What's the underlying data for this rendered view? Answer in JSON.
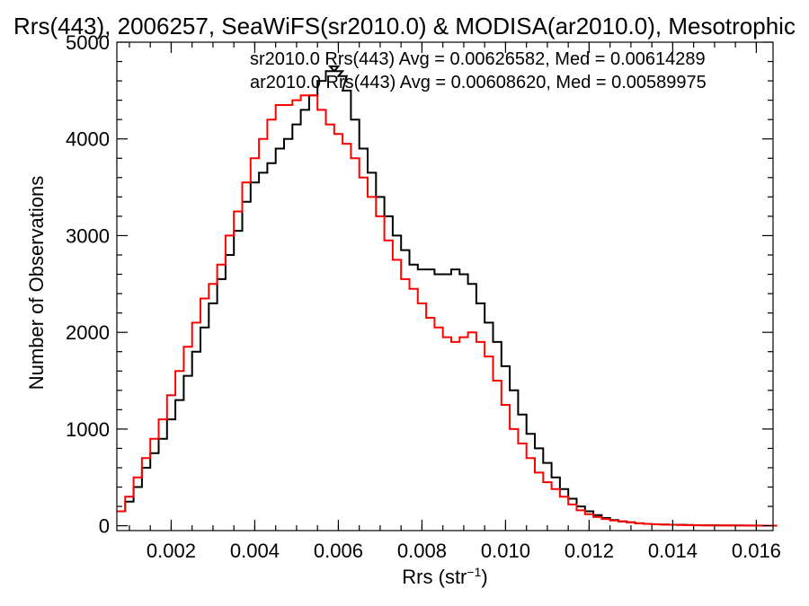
{
  "chart_data": {
    "type": "line",
    "title": "Rrs(443), 2006257, SeaWiFS(sr2010.0) & MODISA(ar2010.0), Mesotrophic",
    "xlabel": "Rrs (str",
    "xlabel_sup": "−1",
    "xlabel_close": ")",
    "ylabel": "Number of Observations",
    "xlim": [
      0.0007,
      0.0164
    ],
    "ylim": [
      -50,
      5000
    ],
    "xticks": [
      0.002,
      0.004,
      0.006,
      0.008,
      0.01,
      0.012,
      0.014,
      0.016
    ],
    "xtick_labels": [
      "0.002",
      "0.004",
      "0.006",
      "0.008",
      "0.010",
      "0.012",
      "0.014",
      "0.016"
    ],
    "yticks": [
      0,
      1000,
      2000,
      3000,
      4000,
      5000
    ],
    "ytick_labels": [
      "0",
      "1000",
      "2000",
      "3000",
      "4000",
      "5000"
    ],
    "step": true,
    "grid": false,
    "series": [
      {
        "name": "sr2010.0 Rrs(443) Avg = 0.00626582, Med = 0.00614289",
        "color": "#000000",
        "x": [
          0.0008,
          0.001,
          0.0012,
          0.0014,
          0.0016,
          0.0018,
          0.002,
          0.0022,
          0.0024,
          0.0026,
          0.0028,
          0.003,
          0.0032,
          0.0034,
          0.0036,
          0.0038,
          0.004,
          0.0042,
          0.0044,
          0.0046,
          0.0048,
          0.005,
          0.0052,
          0.0054,
          0.0056,
          0.0058,
          0.0059,
          0.006,
          0.0061,
          0.0062,
          0.0064,
          0.0066,
          0.0068,
          0.007,
          0.0072,
          0.0074,
          0.0076,
          0.0078,
          0.008,
          0.0082,
          0.0084,
          0.0086,
          0.0088,
          0.009,
          0.0092,
          0.0094,
          0.0096,
          0.0098,
          0.01,
          0.0102,
          0.0104,
          0.0106,
          0.0108,
          0.011,
          0.0112,
          0.0114,
          0.0116,
          0.0118,
          0.012,
          0.0122,
          0.0124,
          0.0126,
          0.0128,
          0.013,
          0.0132,
          0.0134,
          0.0136,
          0.0138,
          0.014,
          0.0142,
          0.0144,
          0.0146,
          0.0148,
          0.015,
          0.0152,
          0.0154,
          0.0156,
          0.0158,
          0.016,
          0.0162,
          0.0164
        ],
        "y": [
          150,
          250,
          400,
          600,
          750,
          900,
          1100,
          1300,
          1550,
          1800,
          2050,
          2300,
          2550,
          2800,
          3050,
          3350,
          3550,
          3650,
          3750,
          3900,
          4000,
          4150,
          4300,
          4450,
          4600,
          4700,
          4750,
          4700,
          4650,
          4500,
          4200,
          3900,
          3650,
          3400,
          3200,
          3000,
          2850,
          2700,
          2650,
          2650,
          2600,
          2600,
          2650,
          2600,
          2500,
          2300,
          2100,
          1900,
          1650,
          1400,
          1150,
          950,
          800,
          650,
          500,
          380,
          280,
          200,
          150,
          110,
          80,
          60,
          45,
          35,
          25,
          20,
          15,
          12,
          10,
          10,
          8,
          6,
          5,
          5,
          4,
          3,
          3,
          2,
          2,
          1,
          1
        ]
      },
      {
        "name": "ar2010.0 Rrs(443) Avg = 0.00608620, Med = 0.00589975",
        "color": "#ff0000",
        "x": [
          0.0008,
          0.001,
          0.0012,
          0.0014,
          0.0016,
          0.0018,
          0.002,
          0.0022,
          0.0024,
          0.0026,
          0.0028,
          0.003,
          0.0032,
          0.0034,
          0.0036,
          0.0038,
          0.004,
          0.0042,
          0.0044,
          0.0046,
          0.0048,
          0.005,
          0.0052,
          0.0054,
          0.0056,
          0.0058,
          0.006,
          0.0062,
          0.0064,
          0.0066,
          0.0068,
          0.007,
          0.0072,
          0.0074,
          0.0076,
          0.0078,
          0.008,
          0.0082,
          0.0084,
          0.0086,
          0.0088,
          0.009,
          0.0092,
          0.0094,
          0.0096,
          0.0098,
          0.01,
          0.0102,
          0.0104,
          0.0106,
          0.0108,
          0.011,
          0.0112,
          0.0114,
          0.0116,
          0.0118,
          0.012,
          0.0122,
          0.0124,
          0.0126,
          0.0128,
          0.013,
          0.0132,
          0.0134,
          0.0136,
          0.0138,
          0.014,
          0.0142,
          0.0144,
          0.0146,
          0.0148,
          0.015,
          0.0152,
          0.0154,
          0.0156,
          0.0158,
          0.016,
          0.0162,
          0.0164
        ],
        "y": [
          150,
          300,
          500,
          700,
          900,
          1100,
          1350,
          1600,
          1850,
          2100,
          2350,
          2500,
          2700,
          3000,
          3250,
          3550,
          3800,
          4000,
          4200,
          4350,
          4350,
          4400,
          4450,
          4450,
          4300,
          4150,
          4050,
          3950,
          3800,
          3600,
          3400,
          3200,
          2950,
          2750,
          2550,
          2450,
          2300,
          2150,
          2050,
          1950,
          1900,
          1950,
          2000,
          1900,
          1750,
          1500,
          1250,
          1000,
          850,
          700,
          550,
          450,
          380,
          300,
          220,
          160,
          120,
          90,
          70,
          55,
          45,
          35,
          25,
          20,
          15,
          12,
          10,
          8,
          6,
          5,
          4,
          4,
          3,
          3,
          2,
          2,
          1,
          1,
          1
        ]
      }
    ]
  }
}
